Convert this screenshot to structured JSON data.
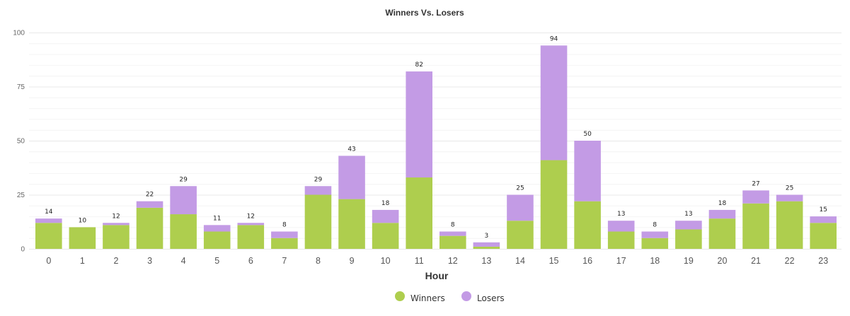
{
  "chart_data": {
    "type": "bar",
    "stacked": true,
    "title": "Winners Vs. Losers",
    "xlabel": "Hour",
    "ylabel": "",
    "ylim": [
      0,
      100
    ],
    "yticks": [
      0,
      25,
      50,
      75,
      100
    ],
    "grid": true,
    "legend_position": "bottom",
    "categories": [
      "0",
      "1",
      "2",
      "3",
      "4",
      "5",
      "6",
      "7",
      "8",
      "9",
      "10",
      "11",
      "12",
      "13",
      "14",
      "15",
      "16",
      "17",
      "18",
      "19",
      "20",
      "21",
      "22",
      "23"
    ],
    "series": [
      {
        "name": "Winners",
        "color": "#aece4e",
        "values": [
          12,
          10,
          11,
          19,
          16,
          8,
          11,
          5,
          25,
          23,
          12,
          33,
          6,
          1,
          13,
          41,
          22,
          8,
          5,
          9,
          14,
          21,
          22,
          12
        ]
      },
      {
        "name": "Losers",
        "color": "#c39be5",
        "values": [
          2,
          0,
          1,
          3,
          13,
          3,
          1,
          3,
          4,
          20,
          6,
          49,
          2,
          2,
          12,
          53,
          28,
          5,
          3,
          4,
          4,
          6,
          3,
          3
        ]
      }
    ],
    "totals": [
      14,
      10,
      12,
      22,
      29,
      11,
      12,
      8,
      29,
      43,
      18,
      82,
      8,
      3,
      25,
      94,
      50,
      13,
      8,
      13,
      18,
      27,
      25,
      15
    ]
  }
}
